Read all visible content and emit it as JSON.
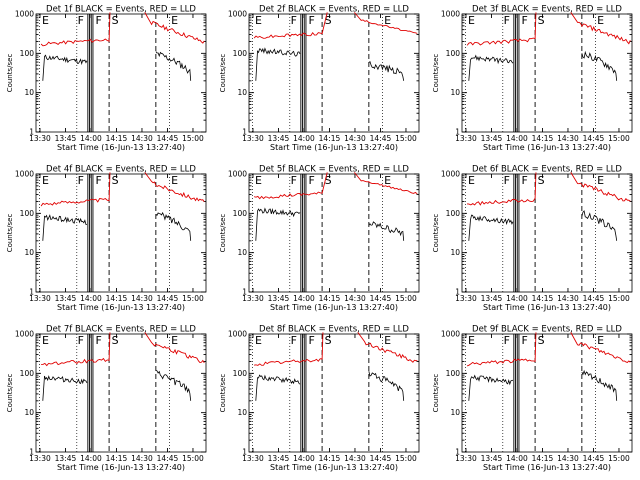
{
  "colors": {
    "events": "#000000",
    "lld": "#e00000",
    "background": "#ffffff"
  },
  "chart_data": [
    {
      "type": "line",
      "title": "Det 1f BLACK = Events, RED = LLD",
      "xlabel": "Start Time (16-Jun-13 13:27:40)",
      "ylabel": "Counts/sec",
      "yscale": "log",
      "ylim": [
        1,
        1000
      ],
      "xlim": [
        "13:27:40",
        "15:07:40"
      ],
      "xticks": [
        "13:30",
        "13:45",
        "14:00",
        "14:15",
        "14:30",
        "14:45",
        "15:00"
      ],
      "yticks": [
        "1",
        "10",
        "100",
        "1000"
      ],
      "event_labels": [
        "E",
        "F",
        "F",
        "S",
        "E"
      ],
      "lld_level": "high",
      "series": [
        {
          "name": "BLACK = Events",
          "color": "#000000"
        },
        {
          "name": "RED = LLD",
          "color": "#e00000"
        }
      ],
      "grid": false
    },
    {
      "type": "line",
      "title": "Det 2f BLACK = Events, RED = LLD",
      "xlabel": "Start Time (16-Jun-13 13:27:40)",
      "ylabel": "Counts/sec",
      "yscale": "log",
      "ylim": [
        1,
        1000
      ],
      "xlim": [
        "13:27:40",
        "15:07:40"
      ],
      "xticks": [
        "13:30",
        "13:45",
        "14:00",
        "14:15",
        "14:30",
        "14:45",
        "15:00"
      ],
      "yticks": [
        "1",
        "10",
        "100",
        "1000"
      ],
      "event_labels": [
        "E",
        "F",
        "F",
        "S",
        "E"
      ],
      "lld_level": "low",
      "series": [
        {
          "name": "BLACK = Events",
          "color": "#000000"
        },
        {
          "name": "RED = LLD",
          "color": "#e00000"
        }
      ],
      "grid": false
    },
    {
      "type": "line",
      "title": "Det 3f BLACK = Events, RED = LLD",
      "xlabel": "Start Time (16-Jun-13 13:27:40)",
      "ylabel": "Counts/sec",
      "yscale": "log",
      "ylim": [
        1,
        1000
      ],
      "xlim": [
        "13:27:40",
        "15:07:40"
      ],
      "xticks": [
        "13:30",
        "13:45",
        "14:00",
        "14:15",
        "14:30",
        "14:45",
        "15:00"
      ],
      "yticks": [
        "1",
        "10",
        "100",
        "1000"
      ],
      "event_labels": [
        "E",
        "F",
        "F",
        "S",
        "E"
      ],
      "lld_level": "high",
      "series": [
        {
          "name": "BLACK = Events",
          "color": "#000000"
        },
        {
          "name": "RED = LLD",
          "color": "#e00000"
        }
      ],
      "grid": false
    },
    {
      "type": "line",
      "title": "Det 4f BLACK = Events, RED = LLD",
      "xlabel": "Start Time (16-Jun-13 13:27:40)",
      "ylabel": "Counts/sec",
      "yscale": "log",
      "ylim": [
        1,
        1000
      ],
      "xlim": [
        "13:27:40",
        "15:07:40"
      ],
      "xticks": [
        "13:30",
        "13:45",
        "14:00",
        "14:15",
        "14:30",
        "14:45",
        "15:00"
      ],
      "yticks": [
        "1",
        "10",
        "100",
        "1000"
      ],
      "event_labels": [
        "E",
        "F",
        "F",
        "S",
        "E"
      ],
      "lld_level": "high",
      "series": [
        {
          "name": "BLACK = Events",
          "color": "#000000"
        },
        {
          "name": "RED = LLD",
          "color": "#e00000"
        }
      ],
      "grid": false
    },
    {
      "type": "line",
      "title": "Det 5f BLACK = Events, RED = LLD",
      "xlabel": "Start Time (16-Jun-13 13:27:40)",
      "ylabel": "Counts/sec",
      "yscale": "log",
      "ylim": [
        1,
        1000
      ],
      "xlim": [
        "13:27:40",
        "15:07:40"
      ],
      "xticks": [
        "13:30",
        "13:45",
        "14:00",
        "14:15",
        "14:30",
        "14:45",
        "15:00"
      ],
      "yticks": [
        "1",
        "10",
        "100",
        "1000"
      ],
      "event_labels": [
        "E",
        "F",
        "F",
        "S",
        "E"
      ],
      "lld_level": "low",
      "series": [
        {
          "name": "BLACK = Events",
          "color": "#000000"
        },
        {
          "name": "RED = LLD",
          "color": "#e00000"
        }
      ],
      "grid": false
    },
    {
      "type": "line",
      "title": "Det 6f BLACK = Events, RED = LLD",
      "xlabel": "Start Time (16-Jun-13 13:27:40)",
      "ylabel": "Counts/sec",
      "yscale": "log",
      "ylim": [
        1,
        1000
      ],
      "xlim": [
        "13:27:40",
        "15:07:40"
      ],
      "xticks": [
        "13:30",
        "13:45",
        "14:00",
        "14:15",
        "14:30",
        "14:45",
        "15:00"
      ],
      "yticks": [
        "1",
        "10",
        "100",
        "1000"
      ],
      "event_labels": [
        "E",
        "F",
        "F",
        "S",
        "E"
      ],
      "lld_level": "high",
      "series": [
        {
          "name": "BLACK = Events",
          "color": "#000000"
        },
        {
          "name": "RED = LLD",
          "color": "#e00000"
        }
      ],
      "grid": false
    },
    {
      "type": "line",
      "title": "Det 7f BLACK = Events, RED = LLD",
      "xlabel": "Start Time (16-Jun-13 13:27:40)",
      "ylabel": "Counts/sec",
      "yscale": "log",
      "ylim": [
        1,
        1000
      ],
      "xlim": [
        "13:27:40",
        "15:07:40"
      ],
      "xticks": [
        "13:30",
        "13:45",
        "14:00",
        "14:15",
        "14:30",
        "14:45",
        "15:00"
      ],
      "yticks": [
        "1",
        "10",
        "100",
        "1000"
      ],
      "event_labels": [
        "E",
        "F",
        "F",
        "S",
        "E"
      ],
      "lld_level": "high",
      "series": [
        {
          "name": "BLACK = Events",
          "color": "#000000"
        },
        {
          "name": "RED = LLD",
          "color": "#e00000"
        }
      ],
      "grid": false
    },
    {
      "type": "line",
      "title": "Det 8f BLACK = Events, RED = LLD",
      "xlabel": "Start Time (16-Jun-13 13:27:40)",
      "ylabel": "Counts/sec",
      "yscale": "log",
      "ylim": [
        1,
        1000
      ],
      "xlim": [
        "13:27:40",
        "15:07:40"
      ],
      "xticks": [
        "13:30",
        "13:45",
        "14:00",
        "14:15",
        "14:30",
        "14:45",
        "15:00"
      ],
      "yticks": [
        "1",
        "10",
        "100",
        "1000"
      ],
      "event_labels": [
        "E",
        "F",
        "F",
        "S",
        "E"
      ],
      "lld_level": "high",
      "series": [
        {
          "name": "BLACK = Events",
          "color": "#000000"
        },
        {
          "name": "RED = LLD",
          "color": "#e00000"
        }
      ],
      "grid": false
    },
    {
      "type": "line",
      "title": "Det 9f BLACK = Events, RED = LLD",
      "xlabel": "Start Time (16-Jun-13 13:27:40)",
      "ylabel": "Counts/sec",
      "yscale": "log",
      "ylim": [
        1,
        1000
      ],
      "xlim": [
        "13:27:40",
        "15:07:40"
      ],
      "xticks": [
        "13:30",
        "13:45",
        "14:00",
        "14:15",
        "14:30",
        "14:45",
        "15:00"
      ],
      "yticks": [
        "1",
        "10",
        "100",
        "1000"
      ],
      "event_labels": [
        "E",
        "F",
        "F",
        "S",
        "E"
      ],
      "lld_level": "high",
      "series": [
        {
          "name": "BLACK = Events",
          "color": "#000000"
        },
        {
          "name": "RED = LLD",
          "color": "#e00000"
        }
      ],
      "grid": false
    }
  ]
}
